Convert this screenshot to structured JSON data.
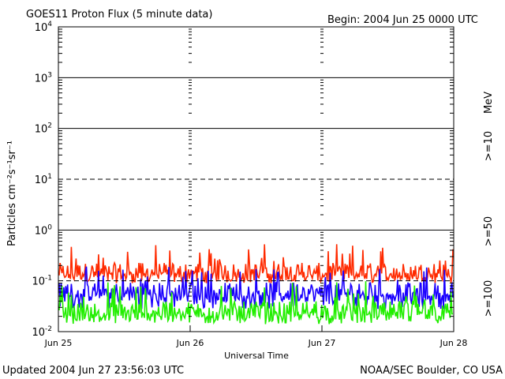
{
  "header": {
    "title": "GOES11 Proton Flux (5 minute data)",
    "begin": "Begin: 2004 Jun 25 0000 UTC"
  },
  "footer": {
    "updated": "Updated 2004 Jun 27 23:56:03 UTC",
    "credit": "NOAA/SEC Boulder, CO USA"
  },
  "chart_data": {
    "type": "line",
    "title": "GOES11 Proton Flux (5 minute data)",
    "xlabel": "Universal Time",
    "ylabel": "Particles cm⁻²s⁻¹sr⁻¹",
    "yscale": "log",
    "ylim": [
      0.01,
      10000
    ],
    "xlim": [
      "2004-06-25",
      "2004-06-28"
    ],
    "x_ticks": [
      "Jun 25",
      "Jun 26",
      "Jun 27",
      "Jun 28"
    ],
    "y_ticks": [
      {
        "base": "10",
        "exp": "-2"
      },
      {
        "base": "10",
        "exp": "-1"
      },
      {
        "base": "10",
        "exp": "0"
      },
      {
        "base": "10",
        "exp": "1"
      },
      {
        "base": "10",
        "exp": "2"
      },
      {
        "base": "10",
        "exp": "3"
      },
      {
        "base": "10",
        "exp": "4"
      }
    ],
    "reference_lines": [
      {
        "y": 0.1,
        "style": "dashed"
      },
      {
        "y": 1,
        "style": "solid"
      },
      {
        "y": 10,
        "style": "dashed"
      },
      {
        "y": 100,
        "style": "solid"
      },
      {
        "y": 1000,
        "style": "solid"
      }
    ],
    "unit_label": "MeV",
    "series": [
      {
        "name": ">=10",
        "color": "#ff2a00",
        "typical": 0.15,
        "min": 0.09,
        "max": 0.55
      },
      {
        "name": ">=50",
        "color": "#1a00ff",
        "typical": 0.06,
        "min": 0.028,
        "max": 0.2
      },
      {
        "name": ">=100",
        "color": "#22ee00",
        "typical": 0.025,
        "min": 0.014,
        "max": 0.1
      }
    ],
    "grid": false
  }
}
